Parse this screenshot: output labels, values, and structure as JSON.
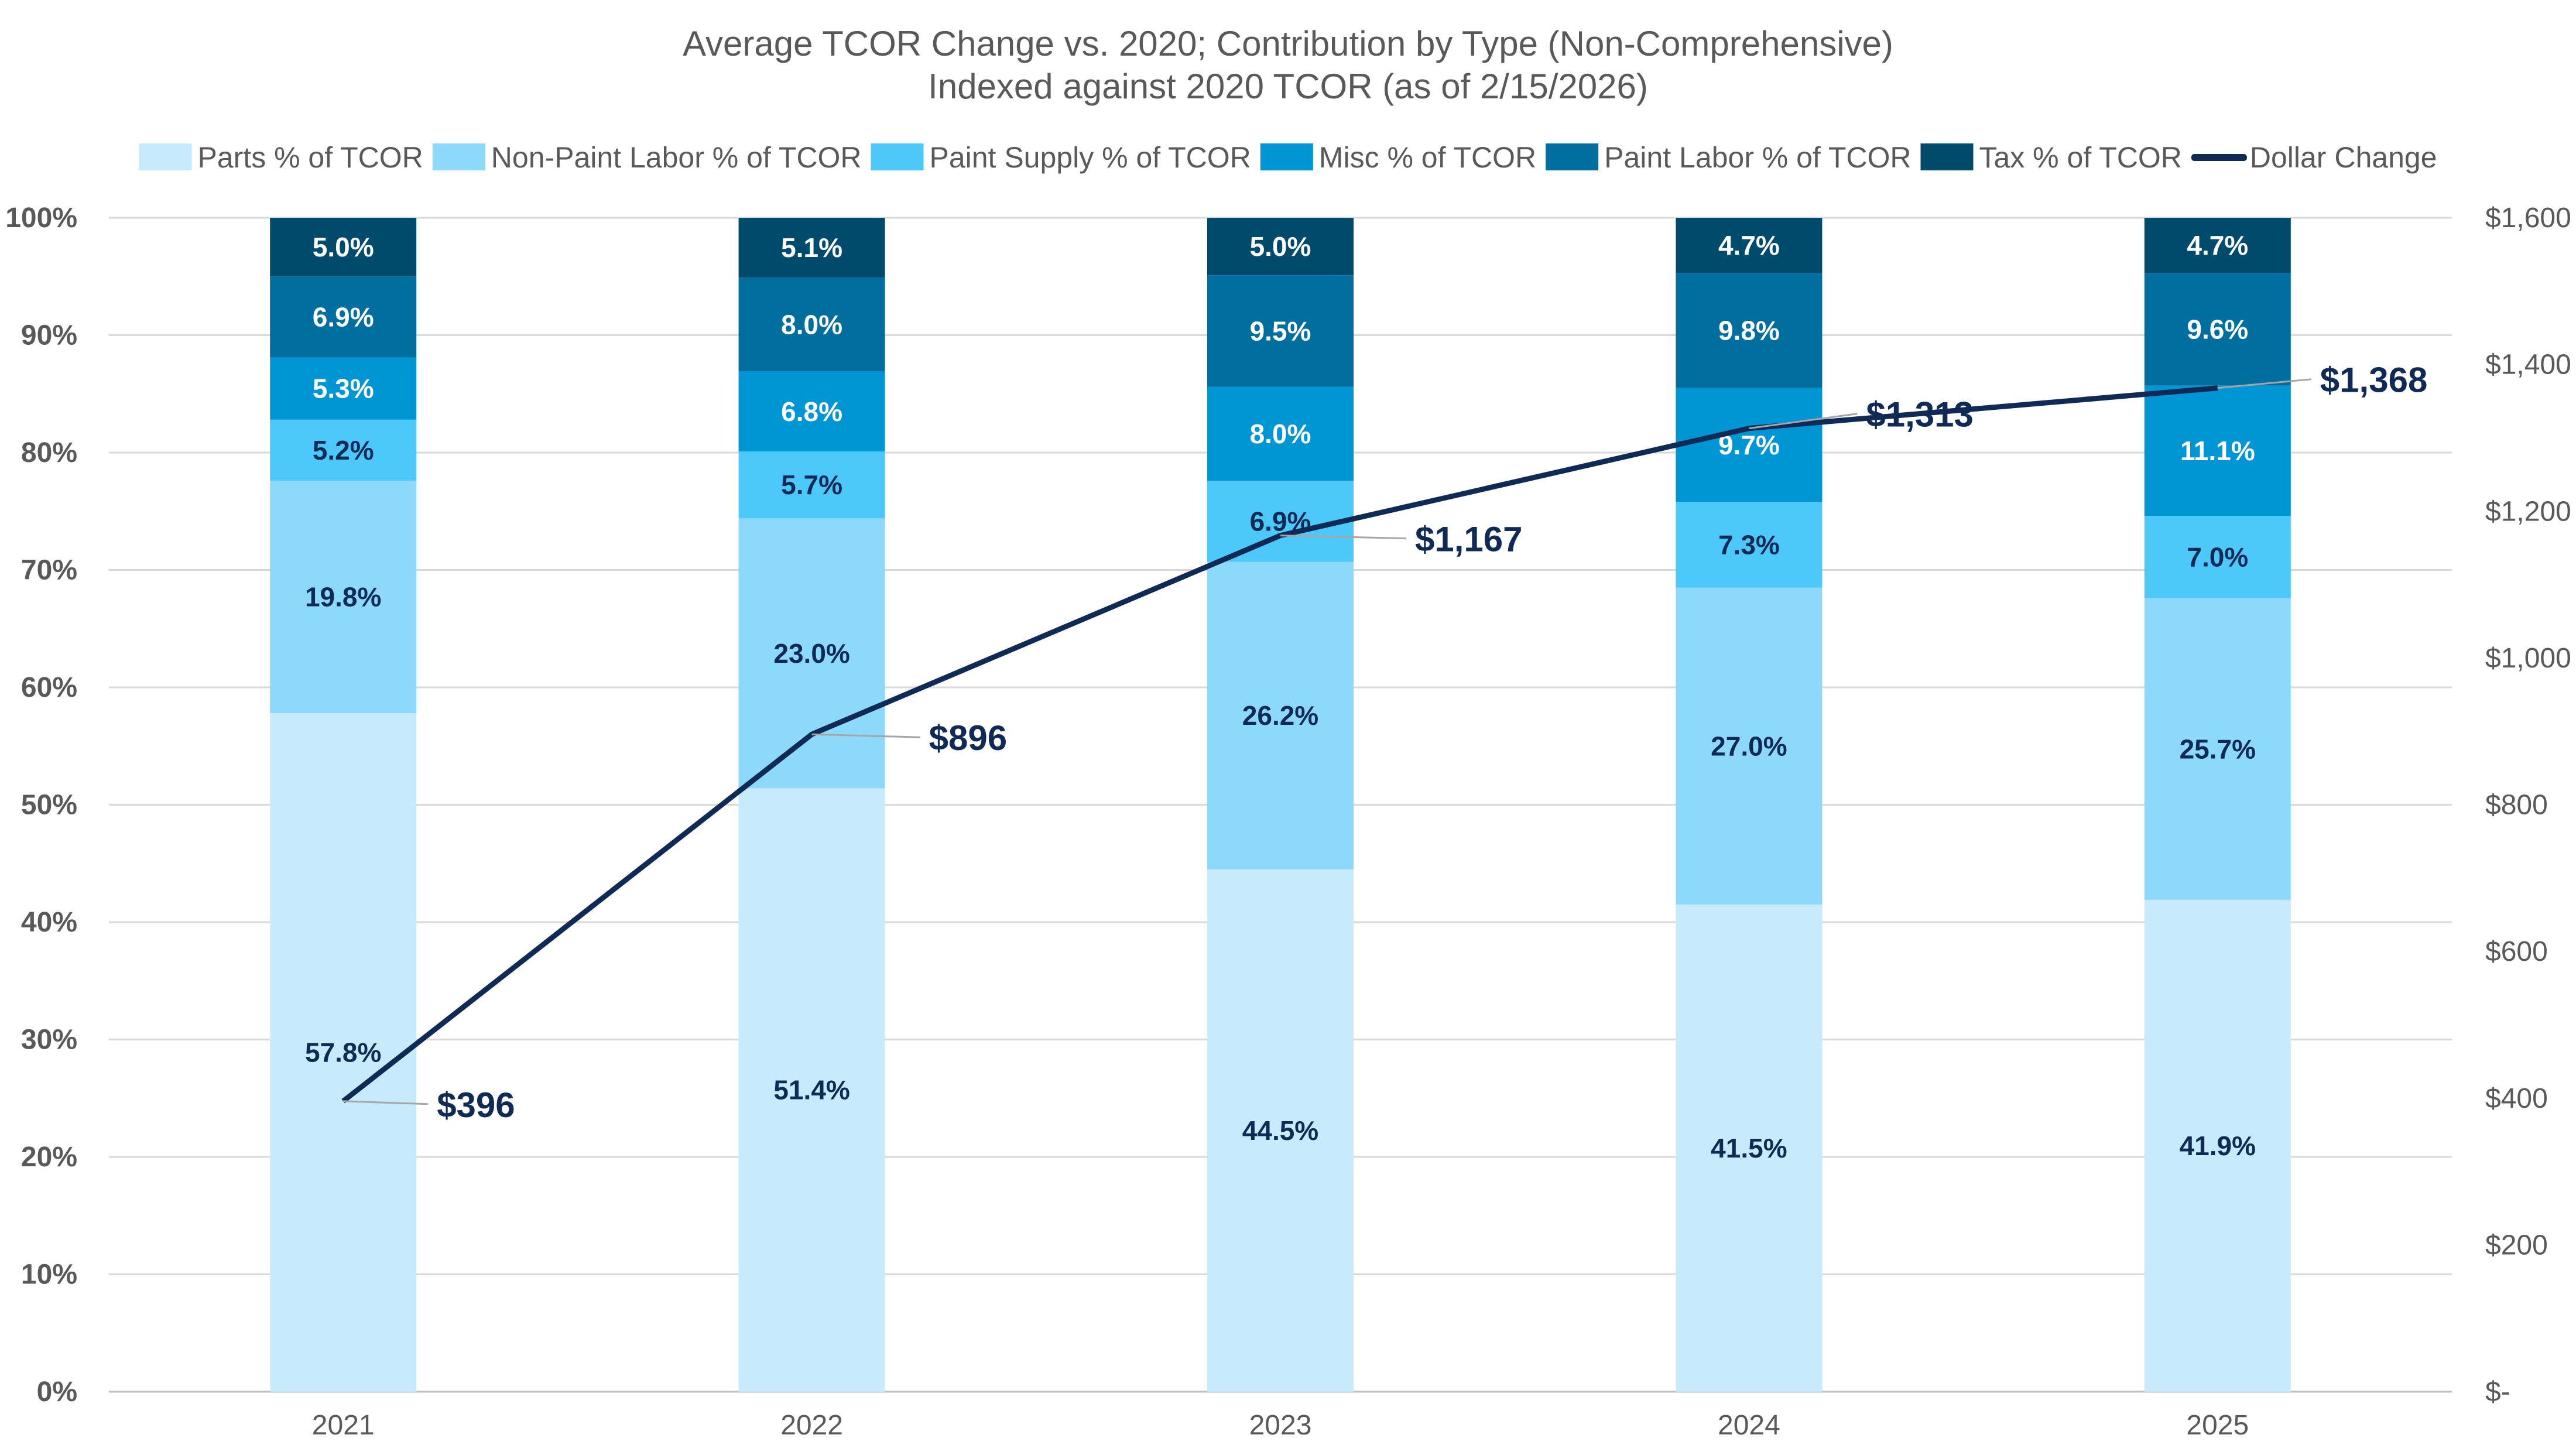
{
  "chart_data": {
    "type": "bar",
    "stacked": true,
    "title": "Average TCOR Change vs. 2020; Contribution by Type (Non-Comprehensive)",
    "subtitle": "Indexed against 2020 TCOR (as of 2/15/2026)",
    "categories": [
      "2021",
      "2022",
      "2023",
      "2024",
      "2025"
    ],
    "y_left": {
      "range": [
        0,
        100
      ],
      "ticks": [
        "0%",
        "10%",
        "20%",
        "30%",
        "40%",
        "50%",
        "60%",
        "70%",
        "80%",
        "90%",
        "100%"
      ]
    },
    "y_right": {
      "range": [
        0,
        1600
      ],
      "ticks": [
        "$-",
        "$200",
        "$400",
        "$600",
        "$800",
        "$1,000",
        "$1,200",
        "$1,400",
        "$1,600"
      ]
    },
    "grid": true,
    "legend_position": "top",
    "series": [
      {
        "name": "Parts % of TCOR",
        "color": "#C7EBFD",
        "label_color": "#0E2A55",
        "values": [
          57.8,
          51.4,
          44.5,
          41.5,
          41.9
        ],
        "labels": [
          "57.8%",
          "51.4%",
          "44.5%",
          "41.5%",
          "41.9%"
        ]
      },
      {
        "name": "Non-Paint Labor % of TCOR",
        "color": "#8CD9FC",
        "label_color": "#0E2A55",
        "values": [
          19.8,
          23.0,
          26.2,
          27.0,
          25.7
        ],
        "labels": [
          "19.8%",
          "23.0%",
          "26.2%",
          "27.0%",
          "25.7%"
        ]
      },
      {
        "name": "Paint Supply % of TCOR",
        "color": "#4DC8FA",
        "label_color": "#0E2A55",
        "values": [
          5.2,
          5.7,
          6.9,
          7.3,
          7.0
        ],
        "labels": [
          "5.2%",
          "5.7%",
          "6.9%",
          "7.3%",
          "7.0%"
        ]
      },
      {
        "name": "Misc % of TCOR",
        "color": "#0096D6",
        "label_color": "#FFFFFF",
        "values": [
          5.3,
          6.8,
          8.0,
          9.7,
          11.1
        ],
        "labels": [
          "5.3%",
          "6.8%",
          "8.0%",
          "9.7%",
          "11.1%"
        ]
      },
      {
        "name": "Paint Labor % of TCOR",
        "color": "#006FA0",
        "label_color": "#FFFFFF",
        "values": [
          6.9,
          8.0,
          9.5,
          9.8,
          9.6
        ],
        "labels": [
          "6.9%",
          "8.0%",
          "9.5%",
          "9.8%",
          "9.6%"
        ]
      },
      {
        "name": "Tax % of TCOR",
        "color": "#004A6B",
        "label_color": "#FFFFFF",
        "values": [
          5.0,
          5.1,
          5.0,
          4.7,
          4.7
        ],
        "labels": [
          "5.0%",
          "5.1%",
          "5.0%",
          "4.7%",
          "4.7%"
        ]
      }
    ],
    "line": {
      "name": "Dollar Change",
      "color": "#0E2A55",
      "axis": "right",
      "values": [
        396,
        896,
        1167,
        1313,
        1368
      ],
      "labels": [
        "$396",
        "$896",
        "$1,167",
        "$1,313",
        "$1,368"
      ]
    }
  }
}
